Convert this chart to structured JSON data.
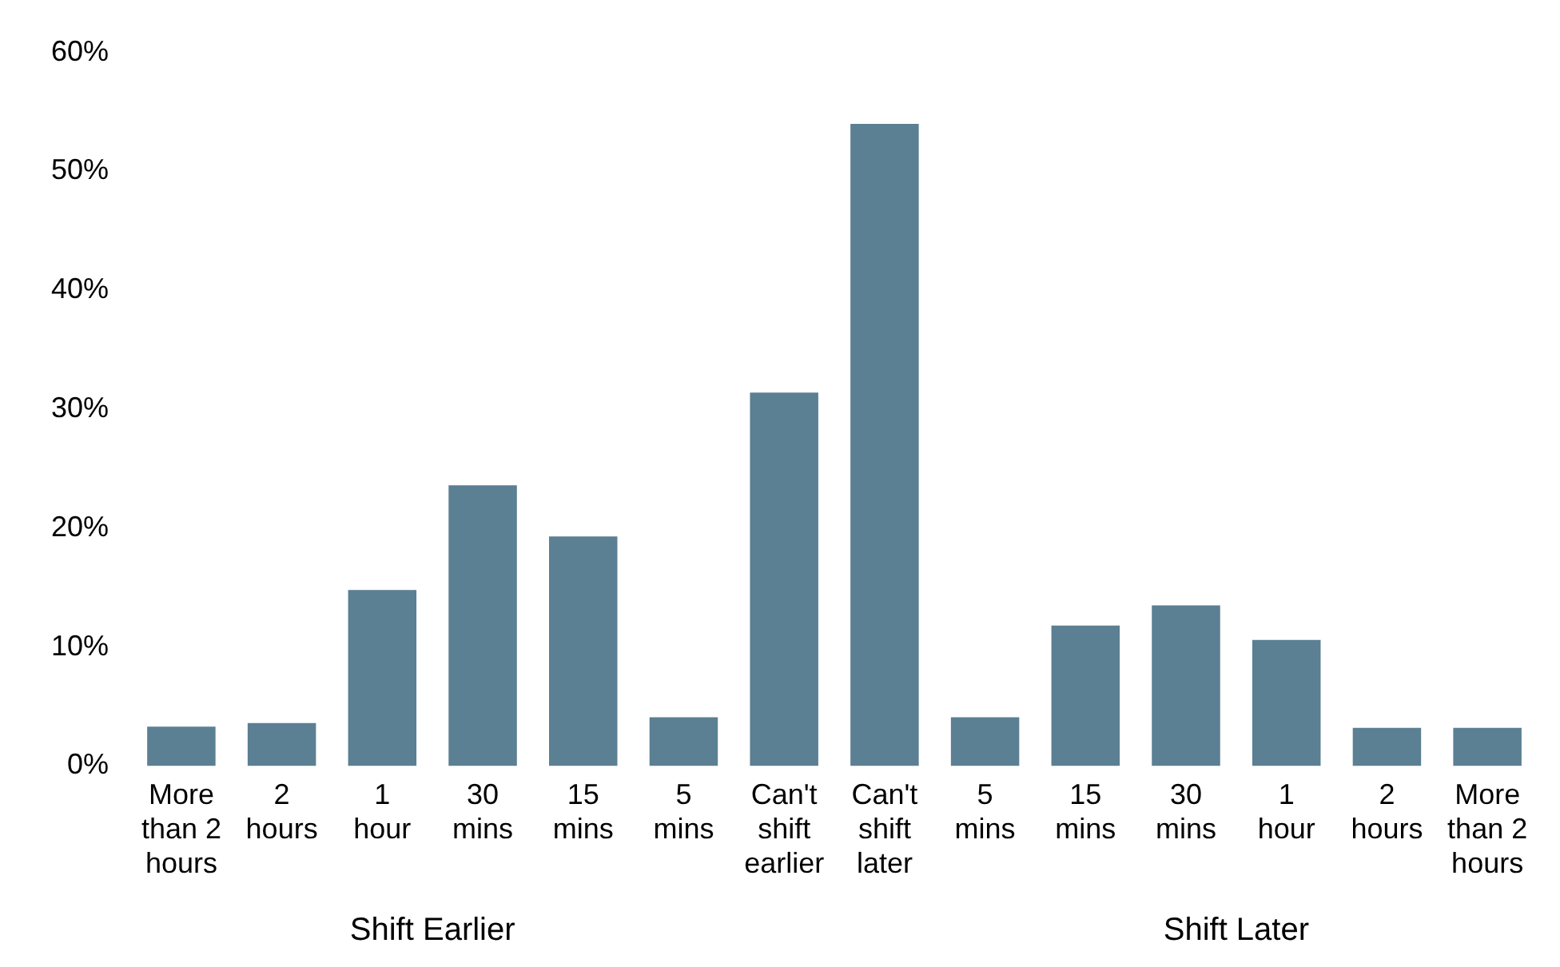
{
  "chart_data": {
    "type": "bar",
    "categories": [
      "More than 2 hours",
      "2 hours",
      "1 hour",
      "30 mins",
      "15 mins",
      "5 mins",
      "Can't shift earlier",
      "Can't shift later",
      "5 mins",
      "15 mins",
      "30 mins",
      "1 hour",
      "2 hours",
      "More than 2 hours"
    ],
    "values": [
      3.3,
      3.6,
      14.8,
      23.6,
      19.3,
      4.1,
      31.4,
      54.0,
      4.1,
      11.8,
      13.5,
      10.6,
      3.2,
      3.2
    ],
    "color": "#5b7f93",
    "ylim": [
      0,
      60
    ],
    "yticks": [
      {
        "value": 0,
        "label": "0%"
      },
      {
        "value": 10,
        "label": "10%"
      },
      {
        "value": 20,
        "label": "20%"
      },
      {
        "value": 30,
        "label": "30%"
      },
      {
        "value": 40,
        "label": "40%"
      },
      {
        "value": 50,
        "label": "50%"
      },
      {
        "value": 60,
        "label": "60%"
      }
    ],
    "annotations": [
      "Shift Earlier",
      "Shift Later"
    ],
    "grid": false,
    "legend": false
  }
}
